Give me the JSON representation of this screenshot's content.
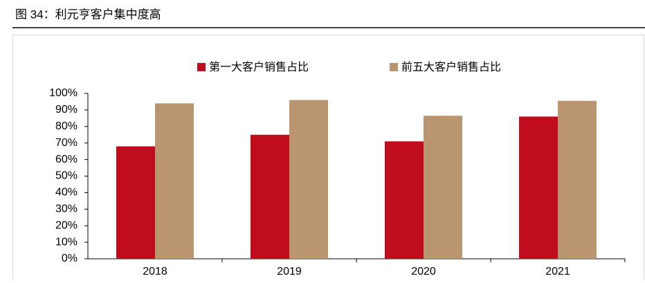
{
  "title": "图 34：利元亨客户集中度高",
  "chart_data": {
    "type": "bar",
    "categories": [
      "2018",
      "2019",
      "2020",
      "2021"
    ],
    "series": [
      {
        "name": "第一大客户销售占比",
        "color": "#c00d1e",
        "values": [
          68,
          75,
          71,
          86
        ]
      },
      {
        "name": "前五大客户销售占比",
        "color": "#b99670",
        "values": [
          94,
          96,
          86.5,
          95.5
        ]
      }
    ],
    "ylim": [
      0,
      100
    ],
    "yticks": [
      {
        "value": 0,
        "label": "0%"
      },
      {
        "value": 10,
        "label": "10%"
      },
      {
        "value": 20,
        "label": "20%"
      },
      {
        "value": 30,
        "label": "30%"
      },
      {
        "value": 40,
        "label": "40%"
      },
      {
        "value": 50,
        "label": "50%"
      },
      {
        "value": 60,
        "label": "60%"
      },
      {
        "value": 70,
        "label": "70%"
      },
      {
        "value": 80,
        "label": "80%"
      },
      {
        "value": 90,
        "label": "90%"
      },
      {
        "value": 100,
        "label": "100%"
      }
    ],
    "grid": false,
    "legend": "top"
  }
}
